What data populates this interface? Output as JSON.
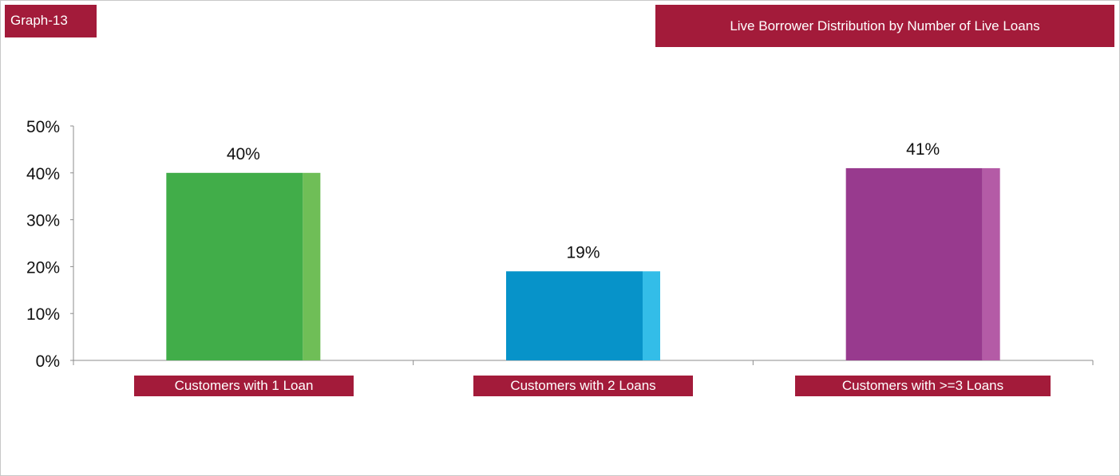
{
  "graph_tag": "Graph-13",
  "chart_data": {
    "type": "bar",
    "title": "Live Borrower Distribution by Number of Live Loans",
    "categories": [
      "Customers with 1 Loan",
      "Customers with 2 Loans",
      "Customers with >=3 Loans"
    ],
    "values": [
      40,
      19,
      41
    ],
    "value_labels": [
      "40%",
      "19%",
      "41%"
    ],
    "y_ticks": [
      "0%",
      "10%",
      "20%",
      "30%",
      "40%",
      "50%"
    ],
    "ylim": [
      0,
      50
    ],
    "grid": false,
    "legend": "none",
    "colors": [
      {
        "main": "#41ad49",
        "side": "#6fbe57"
      },
      {
        "main": "#0793c9",
        "side": "#33bde8"
      },
      {
        "main": "#983a8e",
        "side": "#b45ba6"
      }
    ],
    "label_color": "#a31b3a"
  }
}
